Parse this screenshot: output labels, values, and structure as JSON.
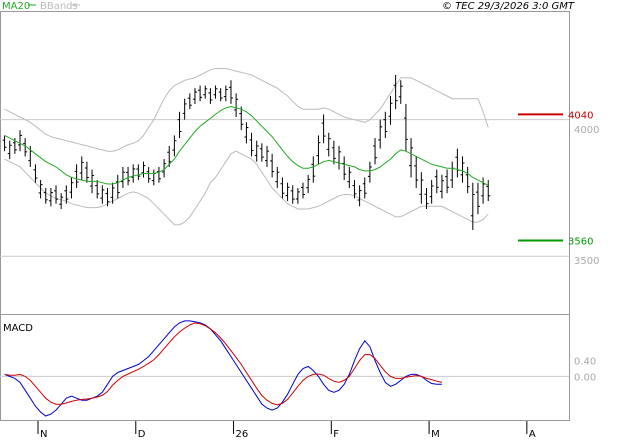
{
  "legend": {
    "ma_label": "MA20",
    "bb_label": "BBands",
    "ma_color": "#22aa22",
    "bb_color": "#bbbbbb"
  },
  "timestamp": "© TEC 29/3/2026 3:0 GMT",
  "chart_data": [
    {
      "type": "ohlc",
      "price_ticks": [
        "4000",
        "3500"
      ],
      "price_tick_values": [
        4000,
        3500
      ],
      "ylim": [
        3280,
        4430
      ],
      "resistance": {
        "label": "4040",
        "value": 4040,
        "color": "#cc0000"
      },
      "support": {
        "label": "3560",
        "value": 3560,
        "color": "#009900"
      },
      "reference_lines": [
        4020,
        3500
      ],
      "bars": [
        [
          3900,
          3960
        ],
        [
          3870,
          3940
        ],
        [
          3890,
          3950
        ],
        [
          3900,
          3980
        ],
        [
          3880,
          3950
        ],
        [
          3840,
          3920
        ],
        [
          3780,
          3850
        ],
        [
          3720,
          3790
        ],
        [
          3700,
          3760
        ],
        [
          3690,
          3760
        ],
        [
          3700,
          3770
        ],
        [
          3680,
          3740
        ],
        [
          3700,
          3770
        ],
        [
          3720,
          3800
        ],
        [
          3760,
          3850
        ],
        [
          3790,
          3880
        ],
        [
          3780,
          3860
        ],
        [
          3740,
          3830
        ],
        [
          3720,
          3790
        ],
        [
          3700,
          3770
        ],
        [
          3690,
          3760
        ],
        [
          3700,
          3780
        ],
        [
          3720,
          3810
        ],
        [
          3760,
          3840
        ],
        [
          3770,
          3840
        ],
        [
          3780,
          3850
        ],
        [
          3790,
          3850
        ],
        [
          3800,
          3860
        ],
        [
          3780,
          3840
        ],
        [
          3770,
          3830
        ],
        [
          3780,
          3840
        ],
        [
          3800,
          3870
        ],
        [
          3840,
          3920
        ],
        [
          3880,
          3960
        ],
        [
          3950,
          4050
        ],
        [
          4020,
          4100
        ],
        [
          4060,
          4120
        ],
        [
          4080,
          4140
        ],
        [
          4090,
          4150
        ],
        [
          4100,
          4150
        ],
        [
          4080,
          4140
        ],
        [
          4100,
          4150
        ],
        [
          4090,
          4140
        ],
        [
          4090,
          4150
        ],
        [
          4080,
          4170
        ],
        [
          4030,
          4120
        ],
        [
          3980,
          4070
        ],
        [
          3930,
          4010
        ],
        [
          3880,
          3970
        ],
        [
          3860,
          3940
        ],
        [
          3860,
          3930
        ],
        [
          3840,
          3920
        ],
        [
          3800,
          3890
        ],
        [
          3760,
          3840
        ],
        [
          3720,
          3800
        ],
        [
          3710,
          3780
        ],
        [
          3700,
          3770
        ],
        [
          3700,
          3760
        ],
        [
          3720,
          3780
        ],
        [
          3740,
          3810
        ],
        [
          3780,
          3880
        ],
        [
          3850,
          3960
        ],
        [
          3930,
          4040
        ],
        [
          3880,
          3970
        ],
        [
          3850,
          3940
        ],
        [
          3830,
          3920
        ],
        [
          3790,
          3880
        ],
        [
          3760,
          3840
        ],
        [
          3720,
          3790
        ],
        [
          3690,
          3770
        ],
        [
          3720,
          3800
        ],
        [
          3780,
          3860
        ],
        [
          3850,
          3950
        ],
        [
          3910,
          4020
        ],
        [
          3950,
          4050
        ],
        [
          4000,
          4110
        ],
        [
          4060,
          4190
        ],
        [
          4080,
          4170
        ],
        [
          3900,
          4080
        ],
        [
          3800,
          3950
        ],
        [
          3760,
          3880
        ],
        [
          3700,
          3820
        ],
        [
          3680,
          3760
        ],
        [
          3700,
          3790
        ],
        [
          3740,
          3830
        ],
        [
          3720,
          3810
        ],
        [
          3740,
          3830
        ],
        [
          3760,
          3860
        ],
        [
          3800,
          3910
        ],
        [
          3780,
          3880
        ],
        [
          3740,
          3840
        ],
        [
          3600,
          3780
        ],
        [
          3660,
          3780
        ],
        [
          3700,
          3800
        ],
        [
          3710,
          3790
        ]
      ],
      "ma20": [
        3960,
        3950,
        3940,
        3930,
        3920,
        3905,
        3890,
        3875,
        3860,
        3850,
        3840,
        3825,
        3810,
        3800,
        3795,
        3790,
        3785,
        3785,
        3785,
        3780,
        3775,
        3775,
        3780,
        3790,
        3800,
        3805,
        3810,
        3815,
        3815,
        3815,
        3820,
        3830,
        3850,
        3870,
        3900,
        3925,
        3950,
        3975,
        3995,
        4010,
        4025,
        4040,
        4055,
        4065,
        4070,
        4065,
        4060,
        4050,
        4035,
        4015,
        3995,
        3975,
        3955,
        3930,
        3905,
        3880,
        3860,
        3845,
        3835,
        3835,
        3840,
        3850,
        3860,
        3865,
        3860,
        3855,
        3850,
        3845,
        3840,
        3830,
        3825,
        3825,
        3830,
        3840,
        3855,
        3870,
        3890,
        3905,
        3900,
        3890,
        3880,
        3870,
        3860,
        3850,
        3845,
        3840,
        3835,
        3835,
        3830,
        3825,
        3815,
        3800,
        3790,
        3780,
        3770
      ],
      "bb_upper": [
        4060,
        4050,
        4040,
        4030,
        4020,
        4010,
        3995,
        3980,
        3965,
        3955,
        3950,
        3945,
        3940,
        3935,
        3930,
        3925,
        3920,
        3915,
        3910,
        3905,
        3900,
        3900,
        3905,
        3915,
        3925,
        3930,
        3940,
        3960,
        3990,
        4020,
        4060,
        4100,
        4130,
        4150,
        4160,
        4170,
        4175,
        4180,
        4190,
        4200,
        4210,
        4215,
        4215,
        4215,
        4210,
        4205,
        4200,
        4195,
        4190,
        4180,
        4170,
        4160,
        4150,
        4140,
        4125,
        4110,
        4090,
        4070,
        4060,
        4060,
        4060,
        4060,
        4065,
        4060,
        4050,
        4040,
        4030,
        4025,
        4020,
        4015,
        4010,
        4020,
        4040,
        4060,
        4090,
        4120,
        4150,
        4180,
        4180,
        4180,
        4170,
        4160,
        4150,
        4140,
        4130,
        4120,
        4110,
        4100,
        4100,
        4100,
        4100,
        4100,
        4100,
        4050,
        3990
      ],
      "bb_lower": [
        3870,
        3860,
        3850,
        3840,
        3820,
        3800,
        3780,
        3760,
        3740,
        3730,
        3720,
        3715,
        3710,
        3700,
        3695,
        3690,
        3685,
        3685,
        3685,
        3690,
        3700,
        3710,
        3720,
        3730,
        3740,
        3745,
        3740,
        3730,
        3720,
        3700,
        3680,
        3660,
        3640,
        3620,
        3620,
        3630,
        3650,
        3680,
        3710,
        3740,
        3780,
        3800,
        3830,
        3860,
        3890,
        3900,
        3890,
        3880,
        3870,
        3850,
        3820,
        3790,
        3760,
        3740,
        3720,
        3700,
        3690,
        3680,
        3680,
        3680,
        3685,
        3690,
        3700,
        3710,
        3720,
        3730,
        3735,
        3735,
        3730,
        3720,
        3710,
        3700,
        3690,
        3680,
        3670,
        3660,
        3650,
        3650,
        3660,
        3670,
        3680,
        3690,
        3690,
        3690,
        3690,
        3690,
        3680,
        3670,
        3660,
        3650,
        3640,
        3630,
        3630,
        3640,
        3660
      ],
      "x_labels": [
        "N",
        "D",
        "26",
        "F",
        "M",
        "A"
      ],
      "x_label_bars": [
        7,
        26,
        45,
        64,
        83,
        102
      ],
      "x_total_bars": 110
    },
    {
      "type": "line",
      "title": "MACD",
      "y_ticks": [
        "0.40",
        "0.00"
      ],
      "y_tick_values": [
        0.4,
        0.0
      ],
      "ylim": [
        -1.1,
        1.55
      ],
      "series": [
        {
          "color": "#0000cc",
          "values": [
            0.05,
            0.0,
            -0.05,
            -0.15,
            -0.35,
            -0.55,
            -0.75,
            -0.9,
            -1.0,
            -0.95,
            -0.85,
            -0.7,
            -0.55,
            -0.5,
            -0.55,
            -0.6,
            -0.6,
            -0.55,
            -0.5,
            -0.4,
            -0.2,
            0.0,
            0.1,
            0.15,
            0.2,
            0.25,
            0.3,
            0.4,
            0.5,
            0.65,
            0.8,
            0.95,
            1.1,
            1.25,
            1.35,
            1.4,
            1.4,
            1.38,
            1.35,
            1.3,
            1.2,
            1.05,
            0.9,
            0.7,
            0.5,
            0.3,
            0.1,
            -0.1,
            -0.3,
            -0.5,
            -0.7,
            -0.8,
            -0.85,
            -0.8,
            -0.65,
            -0.45,
            -0.2,
            0.05,
            0.2,
            0.25,
            0.15,
            0.0,
            -0.2,
            -0.35,
            -0.4,
            -0.35,
            -0.2,
            0.05,
            0.4,
            0.7,
            0.9,
            0.75,
            0.4,
            0.1,
            -0.15,
            -0.25,
            -0.2,
            -0.1,
            0.0,
            0.05,
            0.05,
            0.0,
            -0.1,
            -0.18,
            -0.2,
            -0.2
          ]
        },
        {
          "color": "#cc0000",
          "values": [
            0.05,
            0.03,
            0.03,
            0.05,
            0.0,
            -0.1,
            -0.25,
            -0.4,
            -0.55,
            -0.65,
            -0.7,
            -0.7,
            -0.67,
            -0.63,
            -0.6,
            -0.58,
            -0.57,
            -0.55,
            -0.52,
            -0.48,
            -0.38,
            -0.22,
            -0.1,
            0.0,
            0.06,
            0.12,
            0.18,
            0.25,
            0.33,
            0.42,
            0.55,
            0.7,
            0.85,
            1.0,
            1.12,
            1.22,
            1.3,
            1.35,
            1.33,
            1.28,
            1.2,
            1.1,
            0.97,
            0.82,
            0.65,
            0.48,
            0.3,
            0.1,
            -0.1,
            -0.3,
            -0.48,
            -0.6,
            -0.68,
            -0.72,
            -0.68,
            -0.58,
            -0.42,
            -0.25,
            -0.1,
            0.0,
            0.05,
            0.06,
            0.03,
            -0.05,
            -0.12,
            -0.15,
            -0.1,
            0.0,
            0.2,
            0.4,
            0.55,
            0.55,
            0.45,
            0.28,
            0.12,
            0.0,
            -0.05,
            -0.05,
            -0.02,
            0.0,
            0.02,
            0.0,
            -0.05,
            -0.08,
            -0.12,
            -0.15
          ]
        }
      ]
    }
  ]
}
